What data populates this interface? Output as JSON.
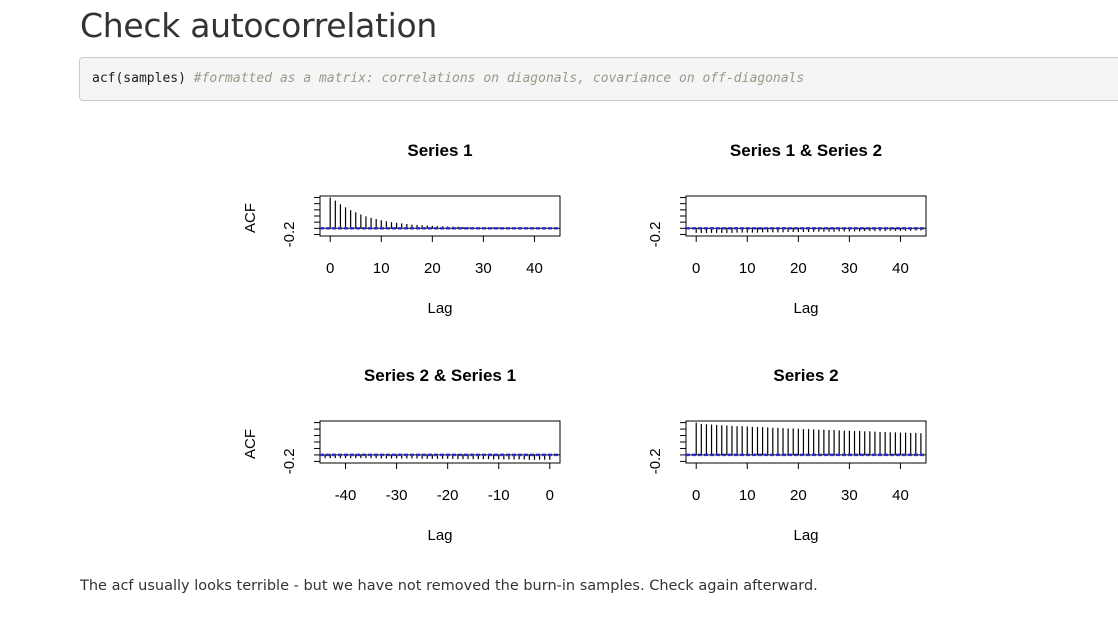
{
  "title": "Check autocorrelation",
  "code": {
    "function_call": "acf(samples)",
    "comment": "#formatted as a matrix: correlations on diagonals, covariance on off-diagonals"
  },
  "footnote": "The acf usually looks terrible - but we have not removed the burn-in samples. Check again afterward.",
  "colors": {
    "ci_line": "#3333cc",
    "spike": "#000000"
  },
  "chart_data": [
    {
      "type": "bar",
      "title": "Series 1",
      "xlabel": "Lag",
      "ylabel": "ACF",
      "xticks": [
        0,
        10,
        20,
        30,
        40
      ],
      "yticks": [
        -0.2
      ],
      "ytick_labels": [
        "-0.2"
      ],
      "xlim": [
        -2,
        45
      ],
      "ylim": [
        -0.25,
        1.05
      ],
      "ci": [
        0.02,
        -0.02
      ],
      "lags": [
        0,
        1,
        2,
        3,
        4,
        5,
        6,
        7,
        8,
        9,
        10,
        11,
        12,
        13,
        14,
        15,
        16,
        17,
        18,
        19,
        20,
        21,
        22,
        23,
        24,
        25,
        26,
        27,
        28,
        29,
        30,
        31,
        32,
        33,
        34,
        35,
        36,
        37,
        38,
        39,
        40,
        41,
        42,
        43,
        44
      ],
      "values": [
        1.0,
        0.9,
        0.78,
        0.68,
        0.59,
        0.52,
        0.45,
        0.39,
        0.34,
        0.3,
        0.26,
        0.23,
        0.2,
        0.18,
        0.16,
        0.14,
        0.12,
        0.11,
        0.1,
        0.09,
        0.08,
        0.07,
        0.065,
        0.06,
        0.055,
        0.05,
        0.045,
        0.04,
        0.038,
        0.035,
        0.032,
        0.03,
        0.028,
        0.026,
        0.024,
        0.022,
        0.02,
        0.02,
        0.018,
        0.018,
        0.016,
        0.015,
        0.015,
        0.014,
        0.014
      ]
    },
    {
      "type": "bar",
      "title": "Series 1 & Series 2",
      "xlabel": "Lag",
      "ylabel": "",
      "xticks": [
        0,
        10,
        20,
        30,
        40
      ],
      "yticks": [
        -0.2
      ],
      "ytick_labels": [
        "-0.2"
      ],
      "xlim": [
        -2,
        45
      ],
      "ylim": [
        -0.25,
        1.05
      ],
      "ci": [
        0.02,
        -0.02
      ],
      "lags": [
        0,
        1,
        2,
        3,
        4,
        5,
        6,
        7,
        8,
        9,
        10,
        11,
        12,
        13,
        14,
        15,
        16,
        17,
        18,
        19,
        20,
        21,
        22,
        23,
        24,
        25,
        26,
        27,
        28,
        29,
        30,
        31,
        32,
        33,
        34,
        35,
        36,
        37,
        38,
        39,
        40,
        41,
        42,
        43,
        44
      ],
      "values": [
        -0.15,
        -0.15,
        -0.15,
        -0.15,
        -0.15,
        -0.15,
        -0.15,
        -0.15,
        -0.14,
        -0.14,
        -0.14,
        -0.14,
        -0.14,
        -0.13,
        -0.13,
        -0.13,
        -0.13,
        -0.13,
        -0.12,
        -0.12,
        -0.12,
        -0.12,
        -0.12,
        -0.11,
        -0.11,
        -0.11,
        -0.11,
        -0.11,
        -0.1,
        -0.1,
        -0.1,
        -0.1,
        -0.1,
        -0.09,
        -0.09,
        -0.09,
        -0.09,
        -0.09,
        -0.08,
        -0.08,
        -0.08,
        -0.08,
        -0.08,
        -0.07,
        -0.07
      ]
    },
    {
      "type": "bar",
      "title": "Series 2 & Series 1",
      "xlabel": "Lag",
      "ylabel": "ACF",
      "xticks": [
        -40,
        -30,
        -20,
        -10,
        0
      ],
      "yticks": [
        -0.2
      ],
      "ytick_labels": [
        "-0.2"
      ],
      "xlim": [
        -45,
        2
      ],
      "ylim": [
        -0.25,
        1.05
      ],
      "ci": [
        0.02,
        -0.02
      ],
      "lags": [
        -44,
        -43,
        -42,
        -41,
        -40,
        -39,
        -38,
        -37,
        -36,
        -35,
        -34,
        -33,
        -32,
        -31,
        -30,
        -29,
        -28,
        -27,
        -26,
        -25,
        -24,
        -23,
        -22,
        -21,
        -20,
        -19,
        -18,
        -17,
        -16,
        -15,
        -14,
        -13,
        -12,
        -11,
        -10,
        -9,
        -8,
        -7,
        -6,
        -5,
        -4,
        -3,
        -2,
        -1,
        0
      ],
      "values": [
        -0.1,
        -0.1,
        -0.1,
        -0.1,
        -0.1,
        -0.1,
        -0.1,
        -0.1,
        -0.1,
        -0.1,
        -0.1,
        -0.11,
        -0.11,
        -0.11,
        -0.11,
        -0.11,
        -0.11,
        -0.11,
        -0.11,
        -0.12,
        -0.12,
        -0.12,
        -0.12,
        -0.12,
        -0.12,
        -0.12,
        -0.13,
        -0.13,
        -0.13,
        -0.13,
        -0.13,
        -0.13,
        -0.13,
        -0.14,
        -0.14,
        -0.14,
        -0.14,
        -0.14,
        -0.14,
        -0.14,
        -0.15,
        -0.15,
        -0.15,
        -0.15,
        -0.15
      ]
    },
    {
      "type": "bar",
      "title": "Series 2",
      "xlabel": "Lag",
      "ylabel": "",
      "xticks": [
        0,
        10,
        20,
        30,
        40
      ],
      "yticks": [
        -0.2
      ],
      "ytick_labels": [
        "-0.2"
      ],
      "xlim": [
        -2,
        45
      ],
      "ylim": [
        -0.25,
        1.05
      ],
      "ci": [
        0.02,
        -0.02
      ],
      "lags": [
        0,
        1,
        2,
        3,
        4,
        5,
        6,
        7,
        8,
        9,
        10,
        11,
        12,
        13,
        14,
        15,
        16,
        17,
        18,
        19,
        20,
        21,
        22,
        23,
        24,
        25,
        26,
        27,
        28,
        29,
        30,
        31,
        32,
        33,
        34,
        35,
        36,
        37,
        38,
        39,
        40,
        41,
        42,
        43,
        44
      ],
      "values": [
        1.0,
        0.96,
        0.95,
        0.94,
        0.93,
        0.92,
        0.91,
        0.9,
        0.89,
        0.89,
        0.88,
        0.87,
        0.86,
        0.86,
        0.85,
        0.84,
        0.84,
        0.83,
        0.82,
        0.82,
        0.81,
        0.8,
        0.8,
        0.79,
        0.78,
        0.78,
        0.77,
        0.77,
        0.76,
        0.75,
        0.75,
        0.74,
        0.74,
        0.73,
        0.73,
        0.72,
        0.71,
        0.71,
        0.7,
        0.7,
        0.69,
        0.69,
        0.68,
        0.68,
        0.67
      ]
    }
  ]
}
